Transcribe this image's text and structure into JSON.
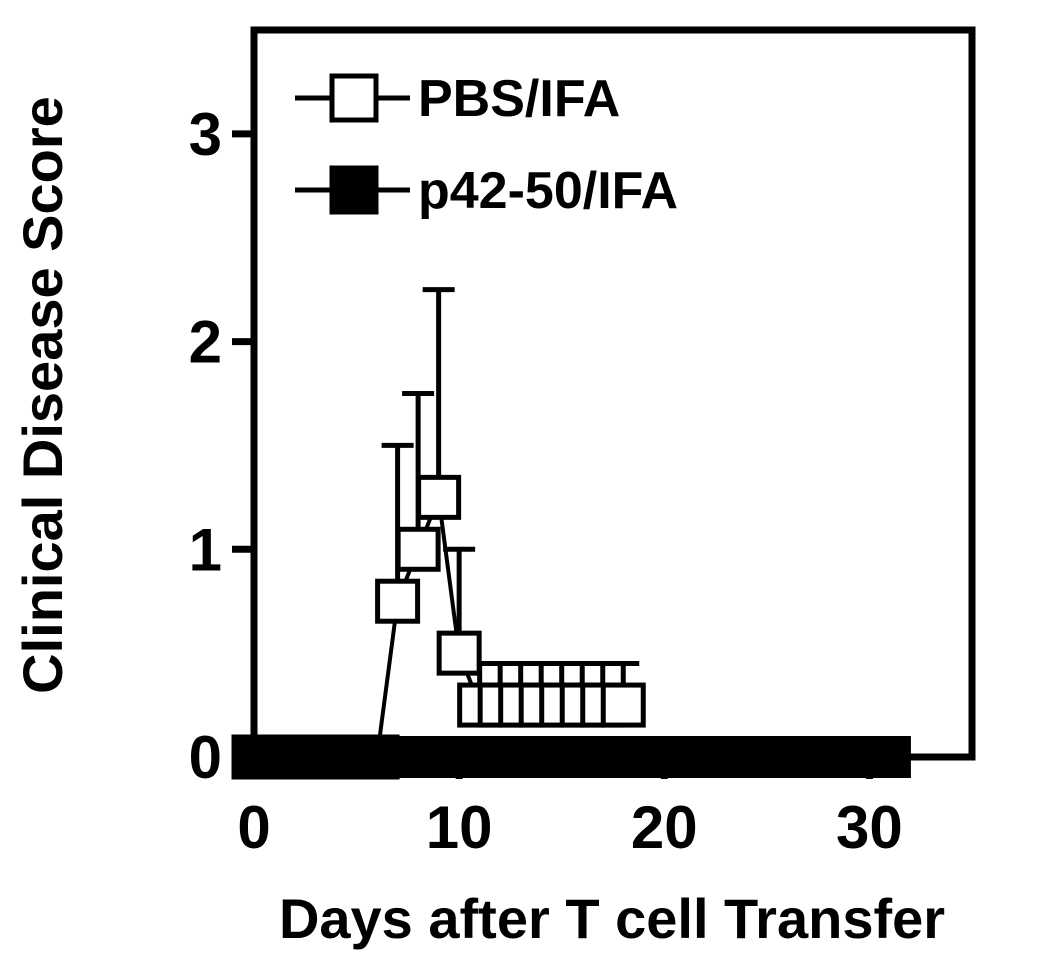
{
  "chart_data": {
    "type": "line",
    "title": "",
    "xlabel": "Days after T cell Transfer",
    "ylabel": "Clinical Disease Score",
    "xlim": [
      0,
      35
    ],
    "ylim": [
      0,
      3.5
    ],
    "x_ticks": [
      0,
      10,
      20,
      30
    ],
    "y_ticks": [
      0,
      1,
      2,
      3
    ],
    "x_tick_labels": [
      "0",
      "10",
      "20",
      "30"
    ],
    "y_tick_labels": [
      "0",
      "1",
      "2",
      "3"
    ],
    "grid": false,
    "legend_position": "top-left",
    "series": [
      {
        "name": "PBS/IFA",
        "marker": "open-square",
        "color": "#000000",
        "x": [
          0,
          1,
          2,
          3,
          4,
          5,
          6,
          7,
          8,
          9,
          10,
          11,
          12,
          13,
          14,
          15,
          16,
          17,
          18
        ],
        "y": [
          0,
          0,
          0,
          0,
          0,
          0,
          0,
          0.75,
          1.0,
          1.25,
          0.5,
          0.25,
          0.25,
          0.25,
          0.25,
          0.25,
          0.25,
          0.25,
          0.25
        ],
        "err_upper": [
          0,
          0,
          0,
          0,
          0,
          0,
          0,
          1.5,
          1.75,
          2.25,
          1.0,
          0.45,
          0.45,
          0.45,
          0.45,
          0.45,
          0.45,
          0.45,
          0.45
        ]
      },
      {
        "name": "p42-50/IFA",
        "marker": "filled-square",
        "color": "#000000",
        "x": [
          0,
          1,
          2,
          3,
          4,
          5,
          6,
          7,
          8,
          9,
          10,
          11,
          12,
          13,
          14,
          15,
          16,
          17,
          18,
          19,
          20,
          21,
          22,
          23,
          24,
          25,
          26,
          27,
          28,
          29,
          30,
          31
        ],
        "y": [
          0,
          0,
          0,
          0,
          0,
          0,
          0,
          0,
          0,
          0,
          0,
          0,
          0,
          0,
          0,
          0,
          0,
          0,
          0,
          0,
          0,
          0,
          0,
          0,
          0,
          0,
          0,
          0,
          0,
          0,
          0,
          0
        ]
      }
    ]
  }
}
